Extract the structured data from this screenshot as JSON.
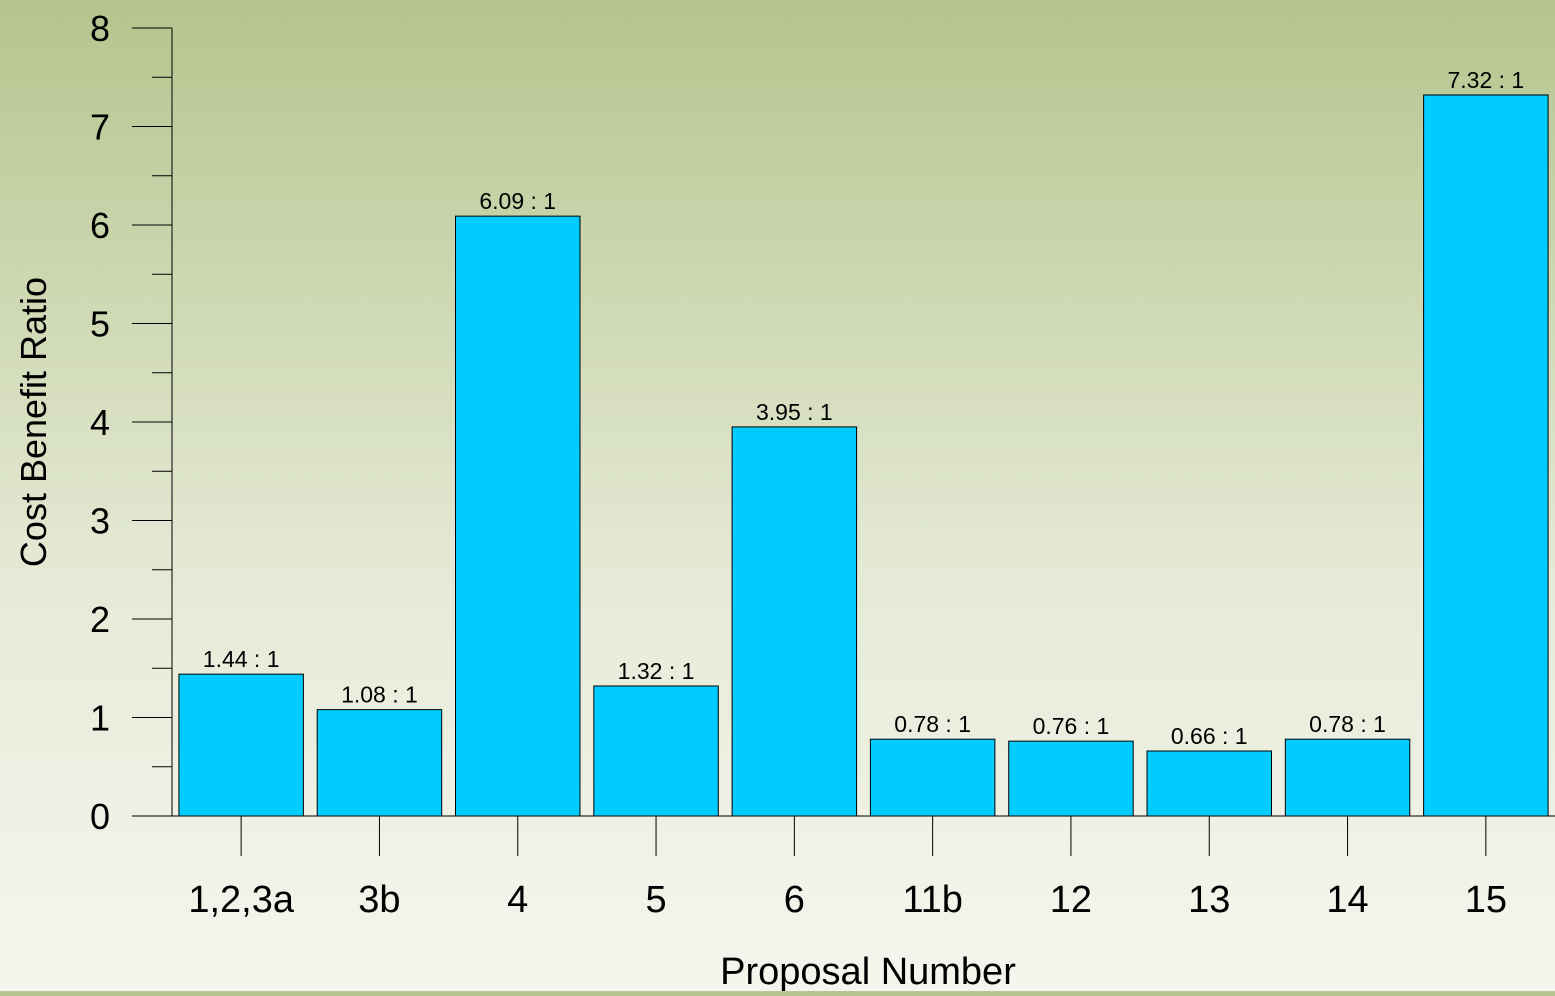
{
  "chart_data": {
    "type": "bar",
    "title": "",
    "xlabel": "Proposal Number",
    "ylabel": "Cost Benefit Ratio",
    "categories": [
      "1,2,3a",
      "3b",
      "4",
      "5",
      "6",
      "11b",
      "12",
      "13",
      "14",
      "15"
    ],
    "values": [
      1.44,
      1.08,
      6.09,
      1.32,
      3.95,
      0.78,
      0.76,
      0.66,
      0.78,
      7.32
    ],
    "value_labels": [
      "1.44 : 1",
      "1.08 : 1",
      "6.09 : 1",
      "1.32 : 1",
      "3.95 : 1",
      "0.78 : 1",
      "0.76 : 1",
      "0.66 : 1",
      "0.78 : 1",
      "7.32 : 1"
    ],
    "ylim": [
      0,
      8
    ],
    "yticks": [
      0,
      1,
      2,
      3,
      4,
      5,
      6,
      7,
      8
    ],
    "grid": false,
    "colors": {
      "bar_fill": "#00ccff",
      "bar_stroke": "#000000",
      "axis": "#000000"
    }
  }
}
